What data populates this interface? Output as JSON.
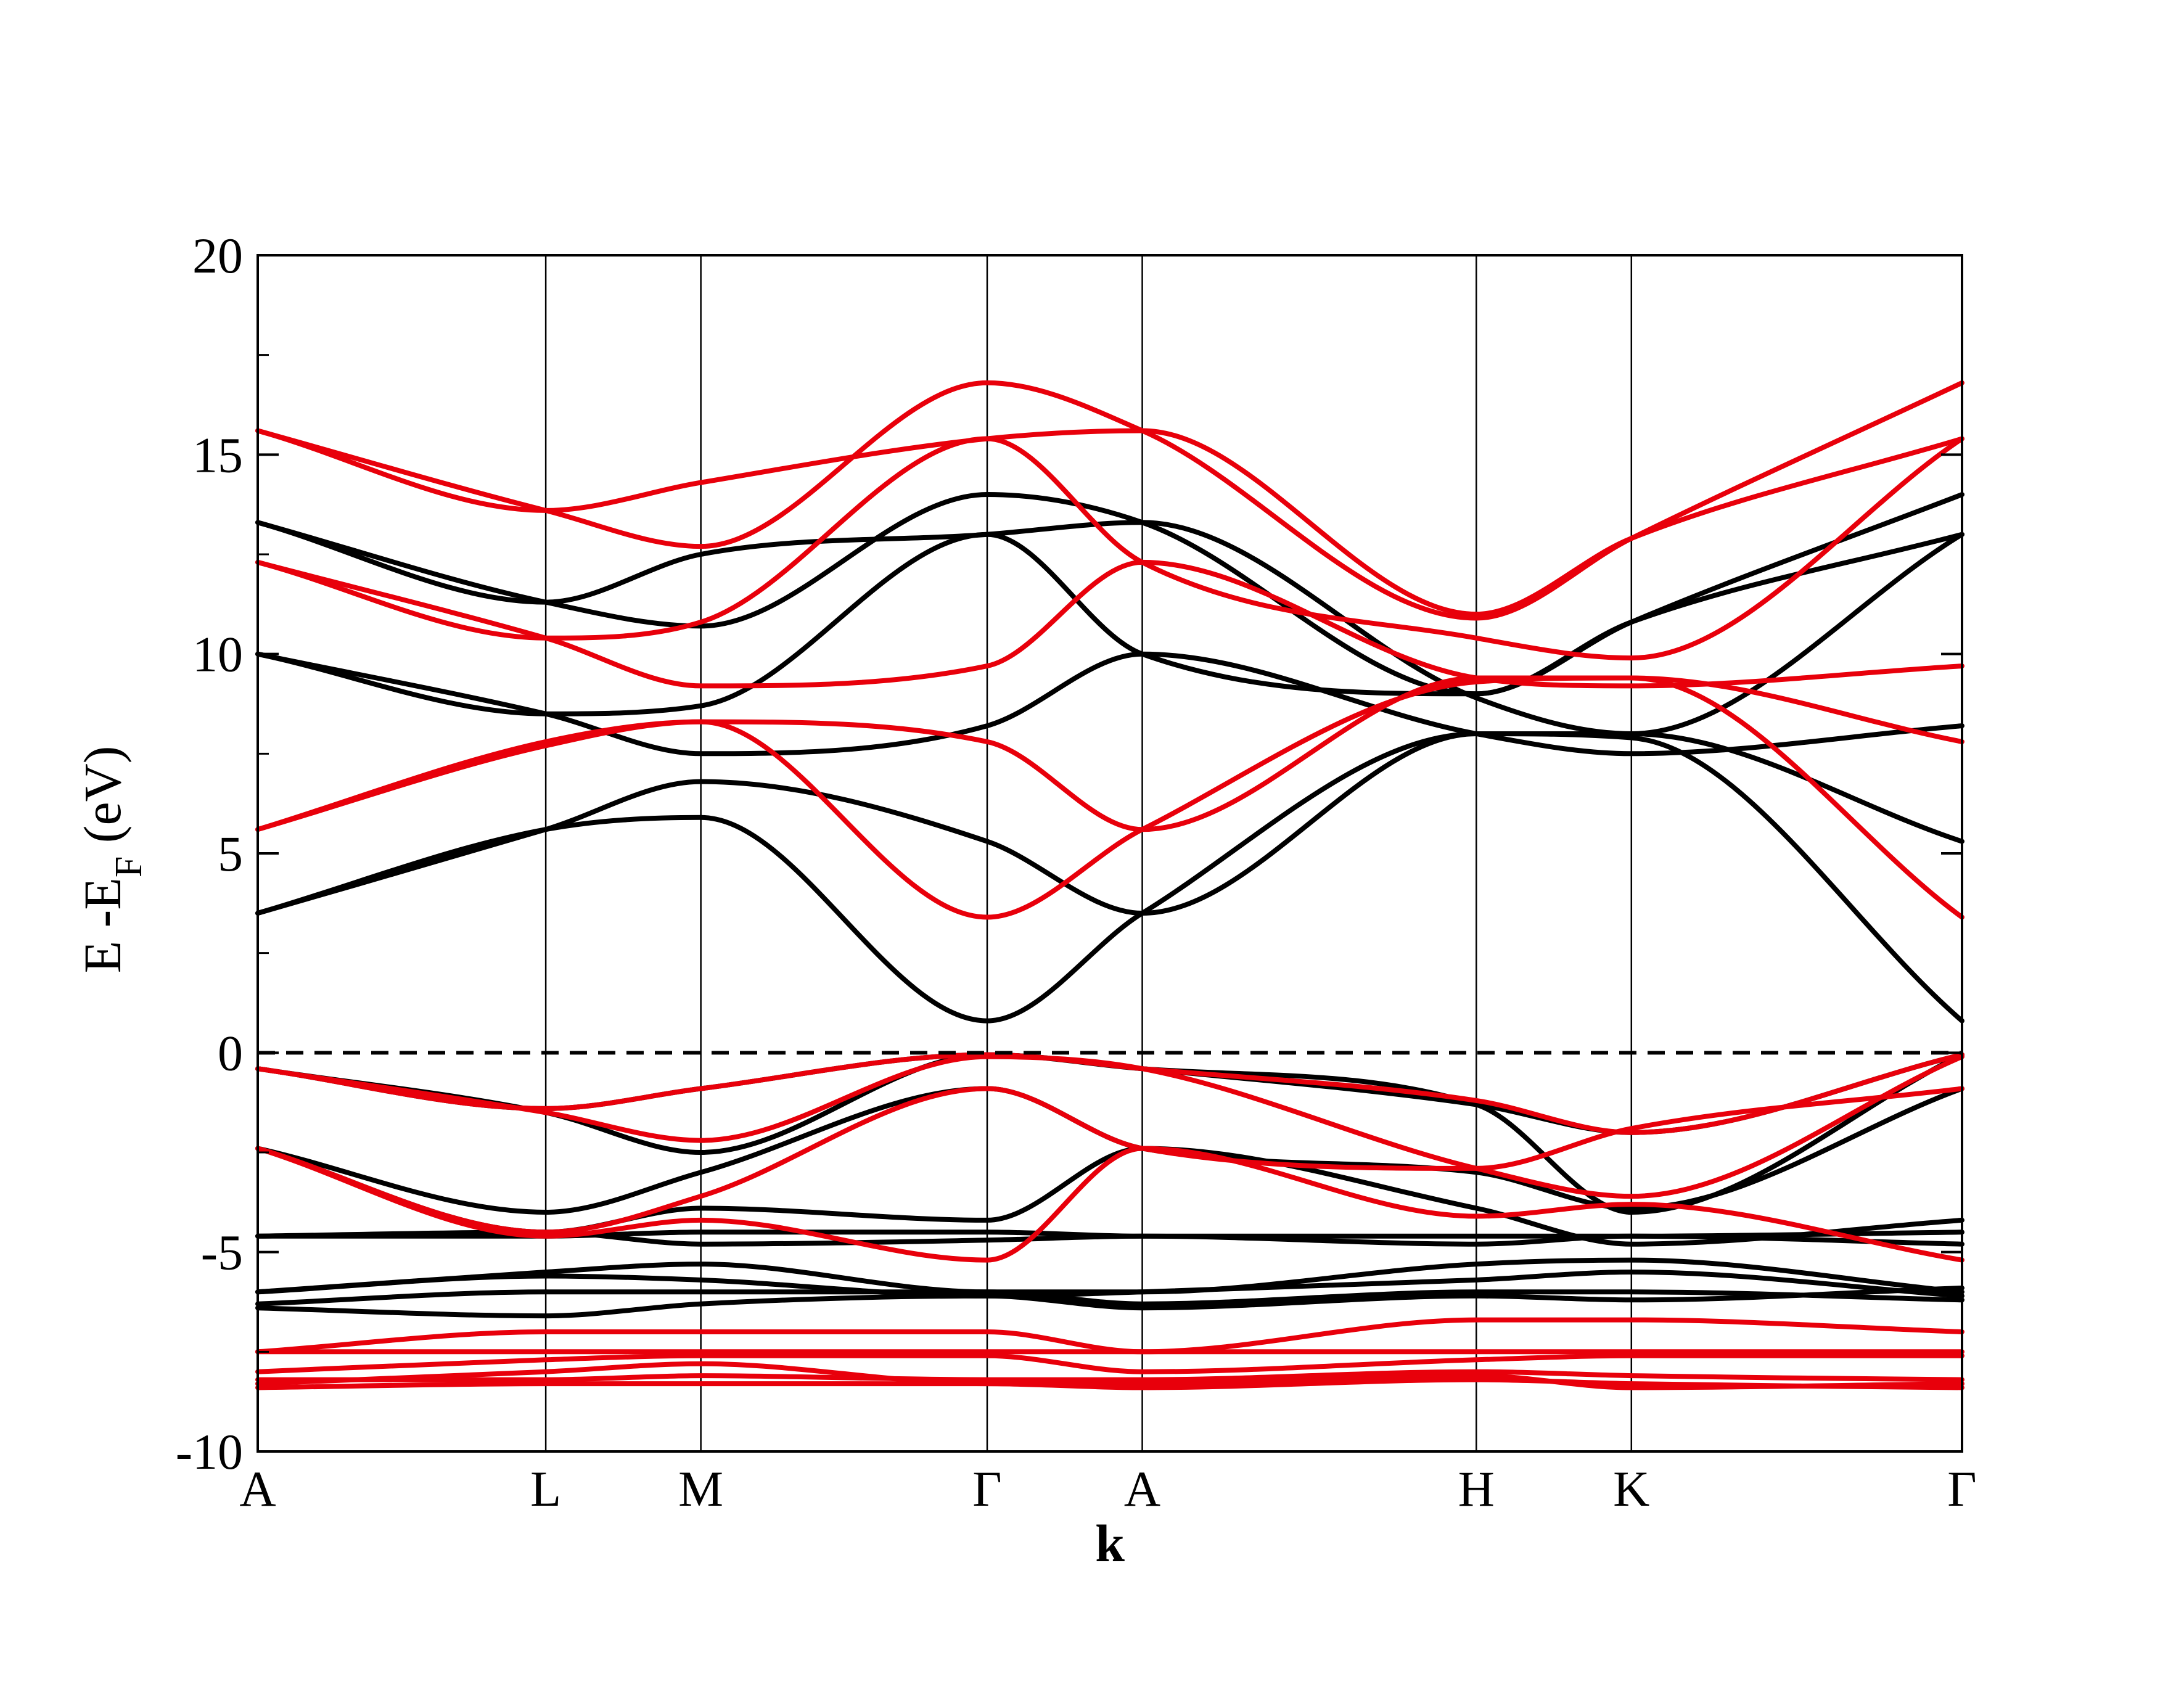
{
  "chart_data": {
    "type": "line",
    "title": "",
    "xlabel": "k",
    "ylabel_main": "E -E",
    "ylabel_sub": "F",
    "ylabel_unit": " (eV)",
    "ylim": [
      -10,
      20
    ],
    "yticks": [
      -10,
      -5,
      0,
      5,
      10,
      15,
      20
    ],
    "ytick_labels": [
      "-10",
      "-5",
      "0",
      "5",
      "10",
      "15",
      "20"
    ],
    "xlim": [
      0,
      1
    ],
    "kpoints": [
      {
        "label": "A",
        "x": 0.0
      },
      {
        "label": "L",
        "x": 0.169
      },
      {
        "label": "M",
        "x": 0.26
      },
      {
        "label": "Γ",
        "x": 0.428
      },
      {
        "label": "A",
        "x": 0.519
      },
      {
        "label": "H",
        "x": 0.715
      },
      {
        "label": "K",
        "x": 0.806
      },
      {
        "label": "Γ",
        "x": 1.0
      }
    ],
    "fermi_level": 0,
    "colors": {
      "set1": "#000000",
      "set2": "#e8000b",
      "fermi": "#000000",
      "axis": "#000000"
    },
    "series": [
      {
        "color": "#000000",
        "x": [
          0,
          0.169,
          0.26,
          0.428,
          0.519,
          0.715,
          0.806,
          1
        ],
        "y": [
          3.5,
          5.6,
          5.9,
          0.8,
          3.5,
          8.0,
          7.9,
          0.8
        ]
      },
      {
        "color": "#000000",
        "x": [
          0,
          0.169,
          0.26,
          0.428,
          0.519,
          0.715,
          0.806,
          1
        ],
        "y": [
          3.5,
          5.6,
          6.8,
          5.3,
          3.5,
          8.0,
          8.0,
          5.3
        ]
      },
      {
        "color": "#000000",
        "x": [
          0,
          0.169,
          0.26,
          0.428,
          0.519,
          0.715,
          0.806,
          1
        ],
        "y": [
          10.0,
          8.5,
          7.5,
          8.2,
          10.0,
          8.0,
          7.5,
          8.2
        ]
      },
      {
        "color": "#000000",
        "x": [
          0,
          0.169,
          0.26,
          0.428,
          0.519,
          0.715,
          0.806,
          1
        ],
        "y": [
          10.0,
          8.5,
          8.7,
          13.0,
          10.0,
          9.0,
          10.8,
          13.0
        ]
      },
      {
        "color": "#000000",
        "x": [
          0,
          0.169,
          0.26,
          0.428,
          0.519,
          0.715,
          0.806,
          1
        ],
        "y": [
          13.3,
          11.3,
          10.7,
          14.0,
          13.3,
          9.0,
          10.8,
          14.0
        ]
      },
      {
        "color": "#000000",
        "x": [
          0,
          0.169,
          0.26,
          0.428,
          0.519,
          0.715,
          0.806,
          1
        ],
        "y": [
          13.3,
          11.3,
          12.5,
          13.0,
          13.3,
          8.9,
          8.0,
          13.0
        ]
      },
      {
        "color": "#000000",
        "x": [
          0,
          0.169,
          0.26,
          0.428,
          0.519,
          0.715,
          0.806,
          1
        ],
        "y": [
          -0.4,
          -1.5,
          -2.5,
          -0.05,
          -0.4,
          -1.3,
          -2.0,
          -0.05
        ]
      },
      {
        "color": "#000000",
        "x": [
          0,
          0.169,
          0.26,
          0.428,
          0.519,
          0.715,
          0.806,
          1
        ],
        "y": [
          -0.4,
          -1.4,
          -0.9,
          -0.05,
          -0.4,
          -1.3,
          -4.0,
          -0.05
        ]
      },
      {
        "color": "#000000",
        "x": [
          0,
          0.169,
          0.26,
          0.428,
          0.519,
          0.715,
          0.806,
          1
        ],
        "y": [
          -2.4,
          -4.0,
          -3.0,
          -0.9,
          -2.4,
          -3.0,
          -3.9,
          -0.9
        ]
      },
      {
        "color": "#000000",
        "x": [
          0,
          0.169,
          0.26,
          0.428,
          0.519,
          0.715,
          0.806,
          1
        ],
        "y": [
          -2.4,
          -4.5,
          -3.9,
          -4.2,
          -2.4,
          -3.9,
          -4.8,
          -4.2
        ]
      },
      {
        "color": "#000000",
        "x": [
          0,
          0.169,
          0.26,
          0.428,
          0.519,
          0.715,
          0.806,
          1
        ],
        "y": [
          -4.6,
          -4.6,
          -4.5,
          -4.5,
          -4.6,
          -4.6,
          -4.6,
          -4.5
        ]
      },
      {
        "color": "#000000",
        "x": [
          0,
          0.169,
          0.26,
          0.428,
          0.519,
          0.715,
          0.806,
          1
        ],
        "y": [
          -4.6,
          -4.5,
          -4.8,
          -4.7,
          -4.6,
          -4.8,
          -4.6,
          -4.8
        ]
      },
      {
        "color": "#000000",
        "x": [
          0,
          0.169,
          0.26,
          0.428,
          0.519,
          0.715,
          0.806,
          1
        ],
        "y": [
          -6.0,
          -5.5,
          -5.3,
          -6.0,
          -6.0,
          -5.3,
          -5.2,
          -6.0
        ]
      },
      {
        "color": "#000000",
        "x": [
          0,
          0.169,
          0.26,
          0.428,
          0.519,
          0.715,
          0.806,
          1
        ],
        "y": [
          -6.0,
          -5.6,
          -5.7,
          -6.1,
          -6.0,
          -5.7,
          -5.5,
          -6.1
        ]
      },
      {
        "color": "#000000",
        "x": [
          0,
          0.169,
          0.26,
          0.428,
          0.519,
          0.715,
          0.806,
          1
        ],
        "y": [
          -6.3,
          -6.0,
          -6.0,
          -6.0,
          -6.3,
          -6.0,
          -6.0,
          -6.2
        ]
      },
      {
        "color": "#000000",
        "x": [
          0,
          0.169,
          0.26,
          0.428,
          0.519,
          0.715,
          0.806,
          1
        ],
        "y": [
          -6.4,
          -6.6,
          -6.3,
          -6.1,
          -6.4,
          -6.1,
          -6.2,
          -5.9
        ]
      },
      {
        "color": "#e8000b",
        "x": [
          0,
          0.169,
          0.26,
          0.428,
          0.519,
          0.715,
          0.806,
          1
        ],
        "y": [
          5.6,
          7.8,
          8.3,
          3.4,
          5.6,
          9.3,
          9.4,
          3.4
        ]
      },
      {
        "color": "#e8000b",
        "x": [
          0,
          0.169,
          0.26,
          0.428,
          0.519,
          0.715,
          0.806,
          1
        ],
        "y": [
          5.6,
          7.7,
          8.3,
          7.8,
          5.6,
          9.4,
          9.4,
          7.8
        ]
      },
      {
        "color": "#e8000b",
        "x": [
          0,
          0.169,
          0.26,
          0.428,
          0.519,
          0.715,
          0.806,
          1
        ],
        "y": [
          12.3,
          10.4,
          9.2,
          9.7,
          12.3,
          9.4,
          9.2,
          9.7
        ]
      },
      {
        "color": "#e8000b",
        "x": [
          0,
          0.169,
          0.26,
          0.428,
          0.519,
          0.715,
          0.806,
          1
        ],
        "y": [
          12.3,
          10.4,
          10.8,
          15.4,
          12.3,
          10.4,
          9.9,
          15.4
        ]
      },
      {
        "color": "#e8000b",
        "x": [
          0,
          0.169,
          0.26,
          0.428,
          0.519,
          0.715,
          0.806,
          1
        ],
        "y": [
          15.6,
          13.6,
          14.3,
          15.4,
          15.6,
          11.0,
          12.9,
          15.4
        ]
      },
      {
        "color": "#e8000b",
        "x": [
          0,
          0.169,
          0.26,
          0.428,
          0.519,
          0.715,
          0.806,
          1
        ],
        "y": [
          15.6,
          13.6,
          12.7,
          16.8,
          15.6,
          10.9,
          12.9,
          16.8
        ]
      },
      {
        "color": "#e8000b",
        "x": [
          0,
          0.169,
          0.26,
          0.428,
          0.519,
          0.715,
          0.806,
          1
        ],
        "y": [
          -0.4,
          -1.4,
          -0.9,
          -0.05,
          -0.4,
          -1.2,
          -2.0,
          -0.05
        ]
      },
      {
        "color": "#e8000b",
        "x": [
          0,
          0.169,
          0.26,
          0.428,
          0.519,
          0.715,
          0.806,
          1
        ],
        "y": [
          -0.4,
          -1.5,
          -2.2,
          -0.1,
          -0.4,
          -2.9,
          -3.6,
          -0.1
        ]
      },
      {
        "color": "#e8000b",
        "x": [
          0,
          0.169,
          0.26,
          0.428,
          0.519,
          0.715,
          0.806,
          1
        ],
        "y": [
          -2.4,
          -4.5,
          -3.6,
          -0.9,
          -2.4,
          -2.9,
          -1.9,
          -0.9
        ]
      },
      {
        "color": "#e8000b",
        "x": [
          0,
          0.169,
          0.26,
          0.428,
          0.519,
          0.715,
          0.806,
          1
        ],
        "y": [
          -2.4,
          -4.6,
          -4.2,
          -5.2,
          -2.4,
          -4.1,
          -3.8,
          -5.2
        ]
      },
      {
        "color": "#e8000b",
        "x": [
          0,
          0.169,
          0.26,
          0.428,
          0.519,
          0.715,
          0.806,
          1
        ],
        "y": [
          -7.5,
          -7.0,
          -7.0,
          -7.0,
          -7.5,
          -6.7,
          -6.7,
          -7.0
        ]
      },
      {
        "color": "#e8000b",
        "x": [
          0,
          0.169,
          0.26,
          0.428,
          0.519,
          0.715,
          0.806,
          1
        ],
        "y": [
          -7.5,
          -7.5,
          -7.5,
          -7.5,
          -7.5,
          -7.5,
          -7.5,
          -7.5
        ]
      },
      {
        "color": "#e8000b",
        "x": [
          0,
          0.169,
          0.26,
          0.428,
          0.519,
          0.715,
          0.806,
          1
        ],
        "y": [
          -8.0,
          -7.7,
          -7.6,
          -7.6,
          -8.0,
          -7.7,
          -7.6,
          -7.6
        ]
      },
      {
        "color": "#e8000b",
        "x": [
          0,
          0.169,
          0.26,
          0.428,
          0.519,
          0.715,
          0.806,
          1
        ],
        "y": [
          -8.3,
          -8.0,
          -7.8,
          -8.3,
          -8.3,
          -8.1,
          -8.4,
          -8.3
        ]
      },
      {
        "color": "#e8000b",
        "x": [
          0,
          0.169,
          0.26,
          0.428,
          0.519,
          0.715,
          0.806,
          1
        ],
        "y": [
          -8.2,
          -8.2,
          -8.1,
          -8.2,
          -8.2,
          -8.0,
          -8.1,
          -8.2
        ]
      },
      {
        "color": "#e8000b",
        "x": [
          0,
          0.169,
          0.26,
          0.428,
          0.519,
          0.715,
          0.806,
          1
        ],
        "y": [
          -8.4,
          -8.3,
          -8.3,
          -8.3,
          -8.4,
          -8.2,
          -8.3,
          -8.4
        ]
      }
    ]
  }
}
